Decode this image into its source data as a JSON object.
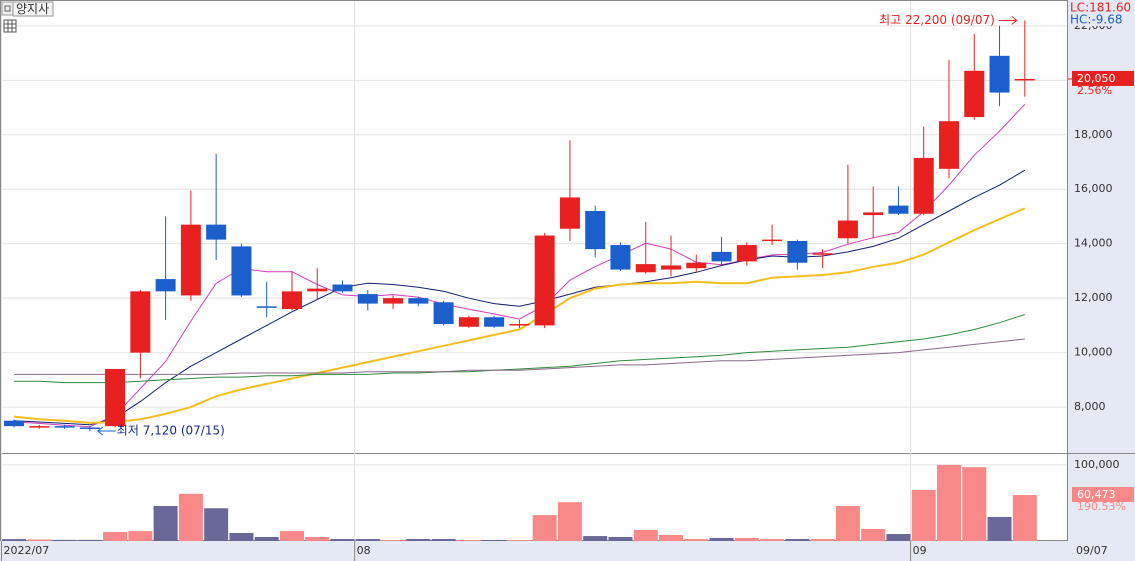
{
  "chart_data": {
    "type": "candlestick",
    "title": "양지사",
    "categories": [
      "2022/07",
      null,
      null,
      null,
      null,
      null,
      null,
      null,
      null,
      null,
      null,
      null,
      null,
      null,
      "08",
      null,
      null,
      null,
      null,
      null,
      null,
      null,
      null,
      null,
      null,
      null,
      null,
      null,
      null,
      null,
      null,
      null,
      null,
      null,
      null,
      null,
      "09",
      null,
      null,
      null,
      null
    ],
    "open": [
      7500,
      7250,
      7300,
      7250,
      7300,
      10000,
      12700,
      12100,
      14700,
      13900,
      11700,
      11600,
      12250,
      12500,
      12150,
      11800,
      12000,
      11850,
      10950,
      11300,
      11000,
      11000,
      14550,
      15200,
      13950,
      12950,
      13050,
      13100,
      13700,
      13350,
      14100,
      14100,
      13600,
      14200,
      15050,
      15400,
      15100,
      16750,
      18650,
      20900,
      20000
    ],
    "high": [
      7550,
      7350,
      7350,
      7300,
      9400,
      12300,
      15000,
      15950,
      17300,
      14000,
      12600,
      13000,
      13100,
      12650,
      12300,
      12100,
      12050,
      11900,
      11350,
      11350,
      11200,
      14400,
      17800,
      15400,
      14050,
      14800,
      14300,
      13600,
      14250,
      14050,
      14700,
      14150,
      13800,
      16900,
      16100,
      16100,
      18300,
      20750,
      21700,
      22000,
      22200
    ],
    "low": [
      7250,
      7200,
      7200,
      7120,
      7250,
      9050,
      11200,
      11900,
      13400,
      12050,
      11300,
      11550,
      11950,
      12200,
      11550,
      11600,
      11700,
      11000,
      10900,
      10900,
      10900,
      10900,
      14100,
      13500,
      13000,
      12900,
      12800,
      12950,
      13200,
      13200,
      13950,
      13050,
      13100,
      14000,
      14200,
      15050,
      15050,
      16400,
      18550,
      19050,
      19400
    ],
    "close": [
      7300,
      7300,
      7250,
      7200,
      9400,
      12250,
      12250,
      14700,
      14150,
      12100,
      11650,
      12250,
      12350,
      12250,
      11800,
      12000,
      11800,
      11050,
      11300,
      10950,
      11050,
      14300,
      15700,
      13800,
      13050,
      13250,
      13200,
      13300,
      13350,
      13950,
      14150,
      13300,
      13650,
      14850,
      15150,
      15100,
      17150,
      18500,
      20350,
      19550,
      20050
    ],
    "up_color": "#e8201f",
    "down_color": "#1a5fcc",
    "ylim": [
      6350,
      22950
    ],
    "yticks": [
      {
        "value": 8000,
        "label": "8,000"
      },
      {
        "value": 10000,
        "label": "10,000"
      },
      {
        "value": 12000,
        "label": "12,000"
      },
      {
        "value": 14000,
        "label": "14,000"
      },
      {
        "value": 16000,
        "label": "16,000"
      },
      {
        "value": 18000,
        "label": "18,000"
      },
      {
        "value": 20000,
        "label": "20,000"
      },
      {
        "value": 22000,
        "label": "22,000"
      }
    ],
    "grid": true,
    "moving_averages": [
      {
        "color": "#d23cc0",
        "values": [
          7450,
          7400,
          7330,
          7280,
          7690,
          8680,
          9670,
          11160,
          12550,
          13090,
          12970,
          12970,
          12500,
          12120,
          12060,
          12130,
          12040,
          11780,
          11590,
          11420,
          11230,
          11730,
          12660,
          13160,
          13580,
          14020,
          13800,
          13320,
          13230,
          13410,
          13590,
          13610,
          13680,
          13980,
          14220,
          14410,
          15180,
          16150,
          17250,
          18130,
          19120
        ]
      },
      {
        "color": "#14206e",
        "values": [
          7500,
          7450,
          7400,
          7350,
          7600,
          8200,
          8900,
          9500,
          10000,
          10500,
          11000,
          11500,
          11950,
          12400,
          12550,
          12500,
          12400,
          12250,
          12000,
          11800,
          11700,
          11900,
          12150,
          12400,
          12500,
          12600,
          12750,
          12950,
          13200,
          13400,
          13550,
          13500,
          13550,
          13700,
          13900,
          14200,
          14700,
          15200,
          15700,
          16150,
          16700
        ]
      },
      {
        "color": "#f2bf1d",
        "values": [
          7650,
          7550,
          7500,
          7420,
          7450,
          7550,
          7750,
          8000,
          8400,
          8650,
          8850,
          9050,
          9250,
          9450,
          9650,
          9850,
          10050,
          10250,
          10450,
          10650,
          10850,
          11400,
          12000,
          12350,
          12500,
          12550,
          12550,
          12600,
          12550,
          12550,
          12750,
          12800,
          12850,
          12950,
          13150,
          13300,
          13600,
          14050,
          14500,
          14900,
          15300
        ]
      },
      {
        "color": "#2e8b3e",
        "values": [
          8950,
          8950,
          8900,
          8900,
          8900,
          8950,
          9000,
          9050,
          9100,
          9100,
          9150,
          9150,
          9200,
          9200,
          9200,
          9250,
          9250,
          9300,
          9300,
          9350,
          9400,
          9450,
          9500,
          9600,
          9700,
          9750,
          9800,
          9850,
          9900,
          10000,
          10050,
          10100,
          10150,
          10200,
          10300,
          10400,
          10500,
          10650,
          10850,
          11100,
          11400
        ]
      },
      {
        "color": "#8a6a8a",
        "values": [
          9200,
          9200,
          9200,
          9200,
          9200,
          9200,
          9200,
          9200,
          9200,
          9250,
          9250,
          9250,
          9250,
          9250,
          9300,
          9300,
          9300,
          9300,
          9350,
          9350,
          9350,
          9400,
          9450,
          9500,
          9550,
          9550,
          9600,
          9650,
          9700,
          9700,
          9750,
          9800,
          9850,
          9900,
          9950,
          10000,
          10100,
          10200,
          10300,
          10400,
          10500
        ]
      }
    ],
    "high_label": "최고 22,200 (09/07)",
    "low_label": "최저 7,120 (07/15)",
    "close_label": "20,050",
    "change_label": "2.56%",
    "lc_label": "LC:181.60",
    "hc_label": "HC:-9.68",
    "date_label": "09/07",
    "volume": {
      "values": [
        2500,
        2000,
        1500,
        1500,
        11800,
        13000,
        46000,
        62000,
        43000,
        10500,
        5300,
        13000,
        5300,
        2600,
        2600,
        1300,
        2600,
        2600,
        1300,
        1300,
        1300,
        34000,
        51000,
        6500,
        5300,
        14500,
        7900,
        2600,
        4000,
        4000,
        2600,
        2600,
        2600,
        46000,
        15800,
        9200,
        67000,
        100000,
        97000,
        31600,
        60473
      ],
      "value_labels": [
        null,
        null,
        null,
        null,
        null,
        null,
        null,
        null,
        null,
        null,
        null,
        null,
        null,
        null,
        null,
        null,
        null,
        null,
        null,
        null,
        null,
        null,
        null,
        null,
        null,
        null,
        null,
        null,
        null,
        null,
        null,
        null,
        null,
        null,
        null,
        null,
        null,
        null,
        null,
        null,
        "60,473"
      ],
      "up_color": "#f98888",
      "down_color": "#6a6799",
      "ylim": [
        0,
        113000
      ],
      "yticks": [
        {
          "value": 100000,
          "label": "100,000"
        }
      ],
      "change_label": "190.53%"
    }
  }
}
